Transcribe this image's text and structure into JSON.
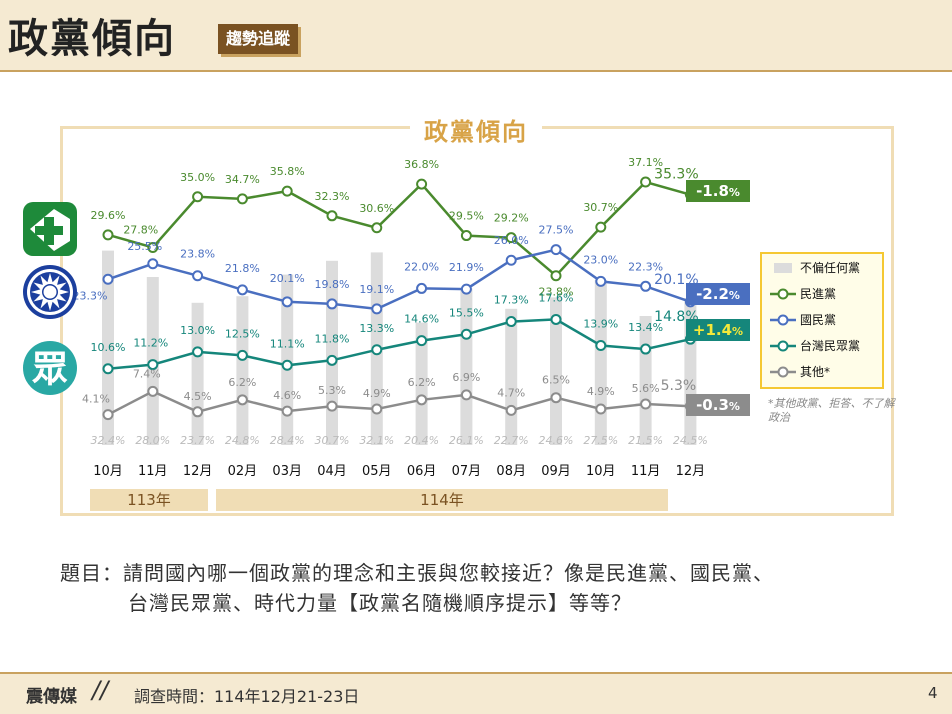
{
  "header": {
    "title": "政黨傾向",
    "badge": "趨勢追蹤"
  },
  "chart_data": {
    "type": "line",
    "title": "政黨傾向",
    "categories": [
      "10月",
      "11月",
      "12月",
      "02月",
      "03月",
      "04月",
      "05月",
      "06月",
      "07月",
      "08月",
      "09月",
      "10月",
      "11月",
      "12月"
    ],
    "year_groups": [
      {
        "label": "113年",
        "start": 0,
        "end": 2
      },
      {
        "label": "114年",
        "start": 3,
        "end": 13
      }
    ],
    "series": [
      {
        "name": "民進黨",
        "color": "#4a8a2e",
        "values": [
          29.6,
          27.8,
          35.0,
          34.7,
          35.8,
          32.3,
          30.6,
          36.8,
          29.5,
          29.2,
          23.8,
          30.7,
          37.1,
          35.3
        ]
      },
      {
        "name": "國民黨",
        "color": "#4a6fc0",
        "values": [
          23.3,
          25.5,
          23.8,
          21.8,
          20.1,
          19.8,
          19.1,
          22.0,
          21.9,
          26.0,
          27.5,
          23.0,
          22.3,
          20.1
        ]
      },
      {
        "name": "台灣民眾黨",
        "color": "#15867b",
        "values": [
          10.6,
          11.2,
          13.0,
          12.5,
          11.1,
          11.8,
          13.3,
          14.6,
          15.5,
          17.3,
          17.6,
          13.9,
          13.4,
          14.8
        ]
      },
      {
        "name": "其他*",
        "color": "#8c8c8c",
        "values": [
          4.1,
          7.4,
          4.5,
          6.2,
          4.6,
          5.3,
          4.9,
          6.2,
          6.9,
          4.7,
          6.5,
          4.9,
          5.6,
          5.3
        ]
      }
    ],
    "bar_series": {
      "name": "不偏任何黨",
      "color": "#dcdcdc",
      "values": [
        32.4,
        28.0,
        23.7,
        24.8,
        28.4,
        30.7,
        32.1,
        20.4,
        26.1,
        22.7,
        24.6,
        27.5,
        21.5,
        24.5
      ]
    },
    "changes": [
      {
        "series": "民進黨",
        "text": "-1.8",
        "unit": "%",
        "bg": "#4a8a2e",
        "fg": "#ffffff"
      },
      {
        "series": "國民黨",
        "text": "-2.2",
        "unit": "%",
        "bg": "#4a6fc0",
        "fg": "#ffffff"
      },
      {
        "series": "台灣民眾黨",
        "text": "+1.4",
        "unit": "%",
        "bg": "#15867b",
        "fg": "#f5e83a"
      },
      {
        "series": "其他*",
        "text": "-0.3",
        "unit": "%",
        "bg": "#8c8c8c",
        "fg": "#ffffff"
      }
    ],
    "legend_note": "*其他政黨、拒答、不了解政治"
  },
  "logos": [
    {
      "name": "dpp-logo",
      "color": "#1e8a3a"
    },
    {
      "name": "kmt-logo",
      "color": "#1c3f9e"
    },
    {
      "name": "tpp-logo",
      "color": "#29a8a4",
      "glyph": "眾"
    }
  ],
  "question": {
    "line1": "題目：請問國內哪一個政黨的理念和主張與您較接近？像是民進黨、國民黨、",
    "line2": "台灣民眾黨、時代力量【政黨名隨機順序提示】等等？"
  },
  "footer": {
    "source": "震傳媒",
    "separator": "//",
    "date": "調查時間：114年12月21-23日",
    "page": "4"
  }
}
